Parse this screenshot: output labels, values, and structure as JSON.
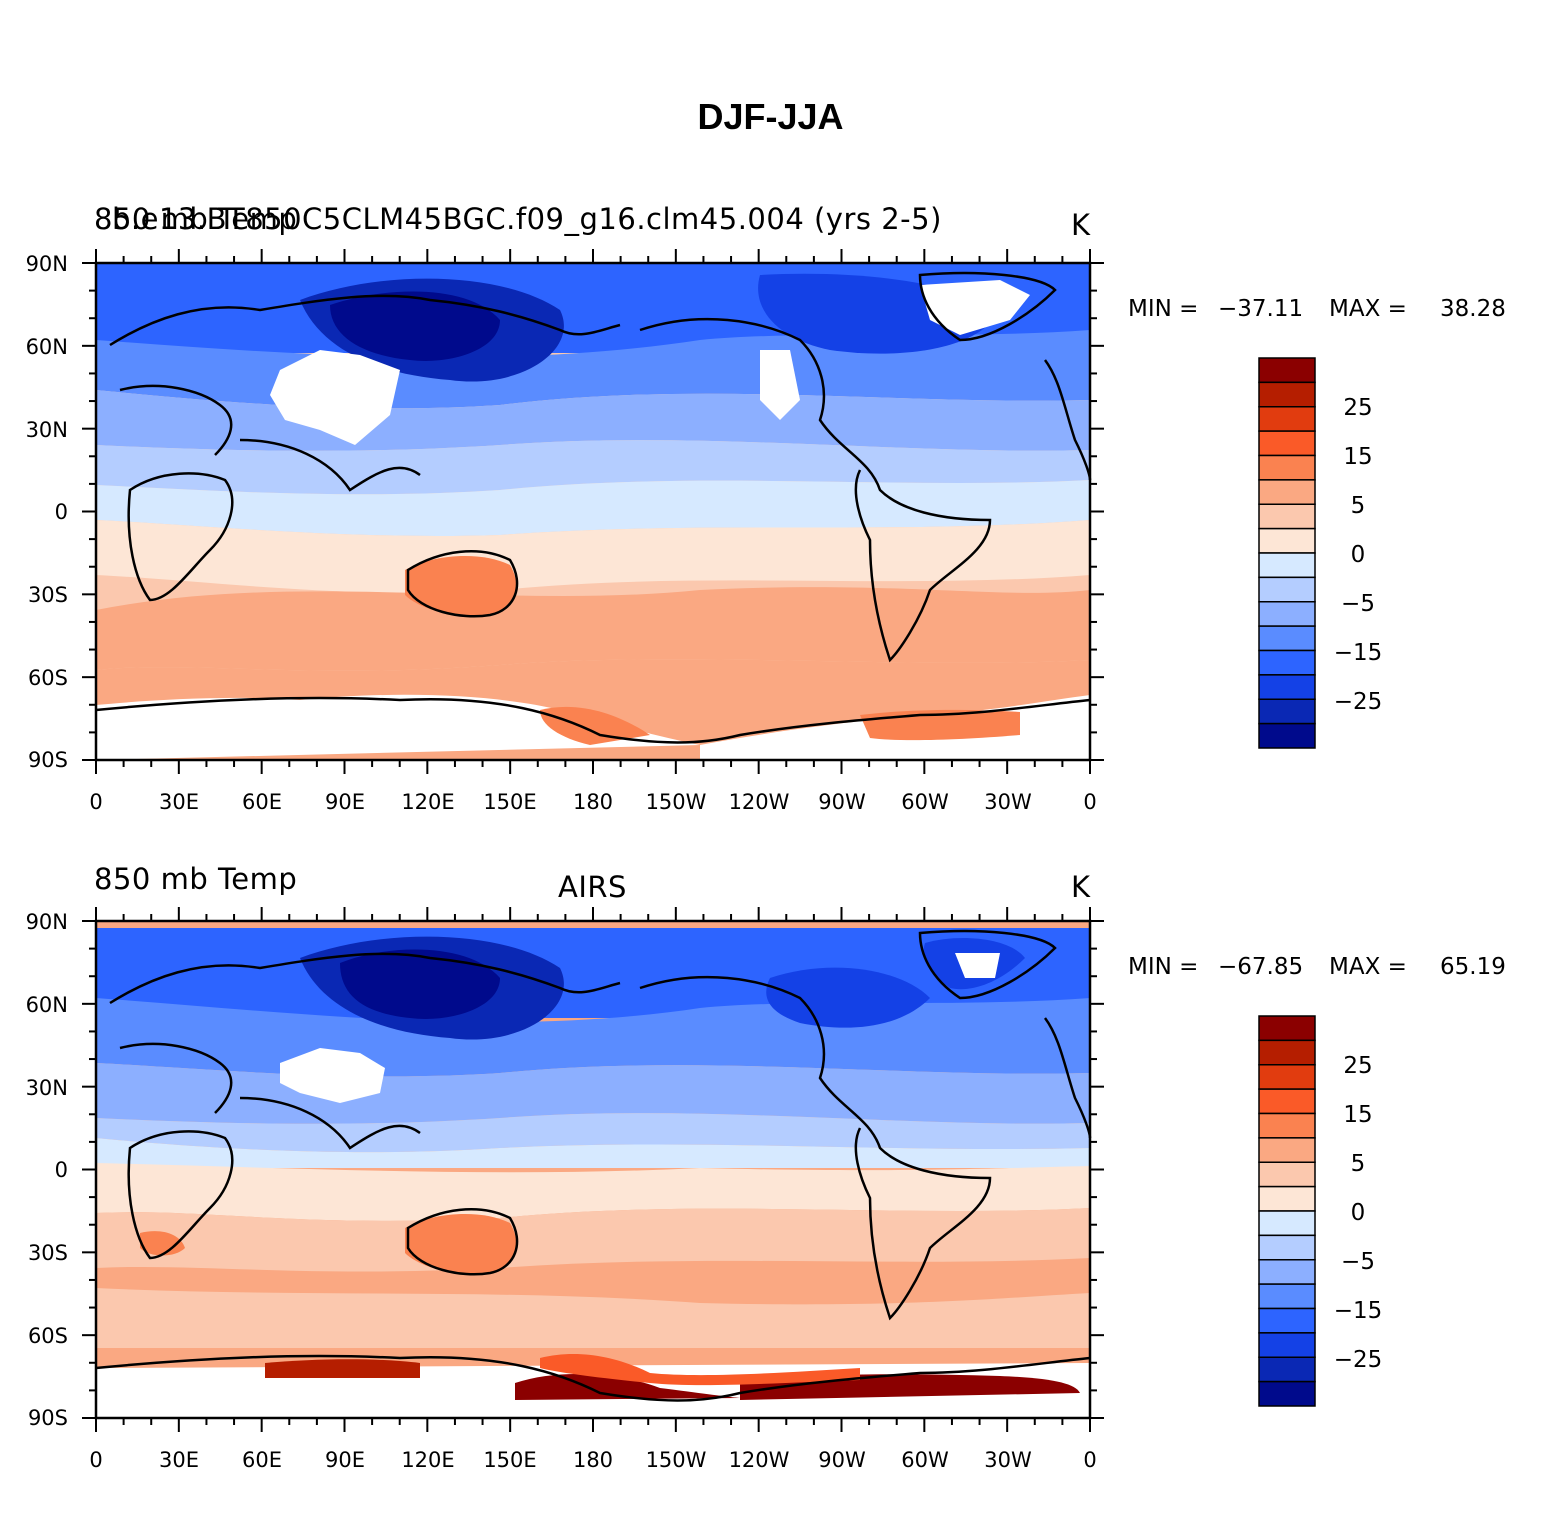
{
  "title": "DJF-JJA",
  "panels": [
    {
      "left_title": "850 mb Temp",
      "left_title_overlap": "b.e13.BT850C5CLM45BGC.f09_g16.clm45.004 (yrs 2-5)",
      "center_title": "",
      "units": "K",
      "min_label": "MIN =",
      "min_value": "−37.11",
      "max_label": "MAX =",
      "max_value": "38.28"
    },
    {
      "left_title": "850 mb Temp",
      "center_title": "AIRS",
      "units": "K",
      "min_label": "MIN =",
      "min_value": "−67.85",
      "max_label": "MAX =",
      "max_value": "65.19"
    }
  ],
  "latitude_labels": [
    "90N",
    "60N",
    "30N",
    "0",
    "30S",
    "60S",
    "90S"
  ],
  "longitude_labels": [
    "0",
    "30E",
    "60E",
    "90E",
    "120E",
    "150E",
    "180",
    "150W",
    "120W",
    "90W",
    "60W",
    "30W",
    "0"
  ],
  "colorbar": {
    "labels": [
      "25",
      "15",
      "5",
      "0",
      "−5",
      "−15",
      "−25"
    ],
    "colors": [
      "#8b0000",
      "#b51e00",
      "#e13c0f",
      "#fa5a28",
      "#fa8250",
      "#faa882",
      "#fbc8ae",
      "#fde6d6",
      "#d6e9ff",
      "#b4cdff",
      "#8cafff",
      "#5a8cff",
      "#2d64ff",
      "#1441e6",
      "#0a28b4",
      "#000a8c"
    ]
  },
  "map_colors": {
    "deep_blue": "#0a28b4",
    "blue": "#2d64ff",
    "mid_blue": "#5a8cff",
    "light_blue": "#8cafff",
    "pale_blue": "#b4cdff",
    "very_pale_blue": "#d6e9ff",
    "pale_orange": "#fde6d6",
    "light_orange": "#fbc8ae",
    "orange": "#faa882",
    "strong_orange": "#fa8250",
    "red": "#e13c0f",
    "dark_red": "#8b0000",
    "missing": "#ffffff"
  }
}
